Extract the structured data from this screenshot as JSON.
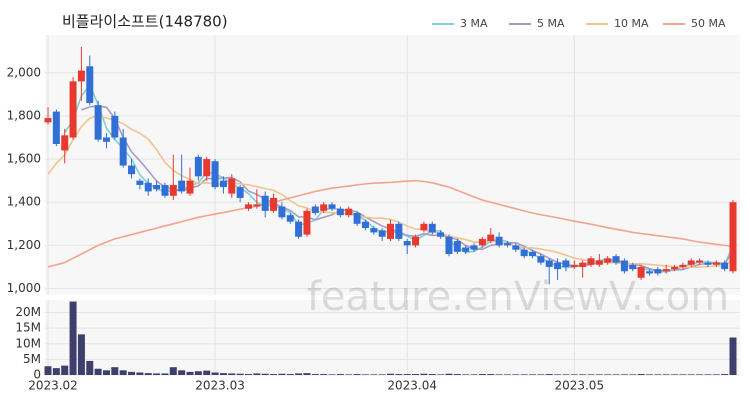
{
  "chart_data": {
    "type": "candlestick",
    "title": "비플라이소프트(148780)",
    "watermark": "feature.enViewV.com",
    "legend": "top-right",
    "up_color": "#e8392f",
    "down_color": "#2f6fd6",
    "categories": [
      "2023.02",
      null,
      null,
      null,
      null,
      null,
      null,
      null,
      null,
      null,
      null,
      null,
      null,
      null,
      null,
      null,
      null,
      null,
      null,
      null,
      "2023.03",
      null,
      null,
      null,
      null,
      null,
      null,
      null,
      null,
      null,
      null,
      null,
      null,
      null,
      null,
      null,
      null,
      null,
      null,
      null,
      null,
      null,
      null,
      "2023.04",
      null,
      null,
      null,
      null,
      null,
      null,
      null,
      null,
      null,
      null,
      null,
      null,
      null,
      null,
      null,
      null,
      null,
      null,
      null,
      "2023.05",
      null,
      null,
      null,
      null,
      null,
      null,
      null,
      null,
      null,
      null,
      null,
      null,
      null,
      null,
      null,
      null,
      null,
      null,
      null
    ],
    "open": [
      1770,
      1820,
      1640,
      1700,
      1960,
      2030,
      1850,
      1700,
      1800,
      1700,
      1570,
      1500,
      1490,
      1480,
      1480,
      1430,
      1500,
      1440,
      1610,
      1520,
      1590,
      1500,
      1440,
      1470,
      1370,
      1380,
      1430,
      1360,
      1380,
      1340,
      1310,
      1250,
      1380,
      1360,
      1390,
      1370,
      1340,
      1350,
      1310,
      1280,
      1270,
      1230,
      1300,
      1220,
      1200,
      1270,
      1300,
      1260,
      1240,
      1220,
      1190,
      1200,
      1200,
      1220,
      1240,
      1210,
      1200,
      1180,
      1170,
      1150,
      1130,
      1120,
      1130,
      1100,
      1100,
      1110,
      1110,
      1120,
      1150,
      1130,
      1110,
      1050,
      1080,
      1090,
      1080,
      1090,
      1100,
      1110,
      1120,
      1120,
      1110,
      1120,
      1080
    ],
    "high": [
      1840,
      1830,
      1740,
      1980,
      2120,
      2080,
      1870,
      1720,
      1820,
      1740,
      1600,
      1510,
      1510,
      1500,
      1490,
      1620,
      1620,
      1560,
      1620,
      1610,
      1600,
      1520,
      1530,
      1480,
      1400,
      1460,
      1450,
      1440,
      1400,
      1350,
      1320,
      1370,
      1390,
      1400,
      1400,
      1380,
      1380,
      1360,
      1320,
      1290,
      1280,
      1320,
      1310,
      1230,
      1250,
      1310,
      1310,
      1270,
      1250,
      1230,
      1200,
      1210,
      1240,
      1280,
      1260,
      1220,
      1210,
      1190,
      1180,
      1160,
      1140,
      1140,
      1140,
      1130,
      1130,
      1150,
      1160,
      1150,
      1160,
      1140,
      1120,
      1110,
      1090,
      1100,
      1110,
      1110,
      1120,
      1140,
      1140,
      1130,
      1130,
      1130,
      1410
    ],
    "low": [
      1760,
      1660,
      1580,
      1690,
      1870,
      1850,
      1680,
      1650,
      1690,
      1560,
      1510,
      1460,
      1430,
      1450,
      1420,
      1410,
      1440,
      1430,
      1500,
      1500,
      1460,
      1440,
      1420,
      1400,
      1360,
      1370,
      1330,
      1350,
      1320,
      1300,
      1230,
      1240,
      1340,
      1350,
      1360,
      1330,
      1330,
      1290,
      1270,
      1250,
      1220,
      1220,
      1220,
      1160,
      1190,
      1260,
      1250,
      1230,
      1150,
      1160,
      1160,
      1170,
      1190,
      1210,
      1190,
      1190,
      1170,
      1140,
      1140,
      1110,
      1020,
      1040,
      1080,
      1090,
      1050,
      1100,
      1100,
      1110,
      1110,
      1070,
      1080,
      1040,
      1060,
      1060,
      1070,
      1080,
      1090,
      1100,
      1110,
      1100,
      1100,
      1080,
      1070
    ],
    "close": [
      1790,
      1670,
      1710,
      1960,
      2010,
      1860,
      1690,
      1680,
      1700,
      1570,
      1530,
      1480,
      1450,
      1460,
      1430,
      1480,
      1450,
      1500,
      1520,
      1600,
      1470,
      1470,
      1510,
      1420,
      1390,
      1390,
      1360,
      1420,
      1330,
      1310,
      1240,
      1360,
      1350,
      1390,
      1370,
      1340,
      1370,
      1300,
      1280,
      1260,
      1240,
      1300,
      1230,
      1200,
      1240,
      1300,
      1260,
      1240,
      1160,
      1170,
      1170,
      1180,
      1230,
      1250,
      1200,
      1200,
      1180,
      1150,
      1150,
      1120,
      1100,
      1090,
      1100,
      1110,
      1120,
      1140,
      1130,
      1140,
      1120,
      1080,
      1090,
      1100,
      1070,
      1070,
      1090,
      1100,
      1110,
      1130,
      1130,
      1110,
      1120,
      1090,
      1400
    ],
    "series": [
      {
        "name": "3 MA",
        "color": "#7fcfd8",
        "values": [
          null,
          null,
          1723,
          1780,
          1893,
          1943,
          1853,
          1743,
          1690,
          1650,
          1600,
          1527,
          1487,
          1463,
          1447,
          1457,
          1453,
          1477,
          1490,
          1540,
          1530,
          1513,
          1483,
          1467,
          1440,
          1400,
          1380,
          1390,
          1370,
          1353,
          1293,
          1303,
          1317,
          1367,
          1370,
          1367,
          1360,
          1337,
          1317,
          1280,
          1260,
          1267,
          1257,
          1243,
          1223,
          1247,
          1267,
          1267,
          1220,
          1190,
          1167,
          1173,
          1193,
          1220,
          1227,
          1217,
          1193,
          1177,
          1160,
          1140,
          1123,
          1103,
          1097,
          1100,
          1110,
          1123,
          1130,
          1137,
          1130,
          1113,
          1097,
          1090,
          1087,
          1080,
          1077,
          1087,
          1100,
          1113,
          1123,
          1123,
          1120,
          1107,
          1203
        ]
      },
      {
        "name": "5 MA",
        "color": "#a99bc4",
        "values": [
          null,
          null,
          null,
          null,
          1828,
          1842,
          1846,
          1840,
          1788,
          1700,
          1634,
          1592,
          1546,
          1498,
          1470,
          1460,
          1454,
          1464,
          1476,
          1510,
          1508,
          1512,
          1514,
          1494,
          1452,
          1436,
          1414,
          1396,
          1378,
          1362,
          1332,
          1332,
          1318,
          1330,
          1342,
          1362,
          1364,
          1354,
          1332,
          1310,
          1290,
          1276,
          1262,
          1246,
          1242,
          1254,
          1246,
          1248,
          1240,
          1226,
          1200,
          1184,
          1182,
          1200,
          1206,
          1212,
          1212,
          1196,
          1176,
          1160,
          1140,
          1122,
          1112,
          1104,
          1104,
          1112,
          1120,
          1128,
          1130,
          1122,
          1112,
          1106,
          1092,
          1082,
          1084,
          1086,
          1088,
          1100,
          1112,
          1116,
          1120,
          1116,
          1170
        ]
      },
      {
        "name": "10 MA",
        "color": "#f2c48d",
        "values": [
          1530,
          1580,
          1620,
          1690,
          1750,
          1790,
          1800,
          1790,
          1780,
          1764,
          1738,
          1719,
          1693,
          1643,
          1585,
          1547,
          1523,
          1505,
          1487,
          1490,
          1484,
          1483,
          1489,
          1485,
          1481,
          1472,
          1463,
          1455,
          1436,
          1407,
          1384,
          1373,
          1357,
          1354,
          1352,
          1347,
          1348,
          1336,
          1331,
          1326,
          1326,
          1320,
          1308,
          1289,
          1276,
          1272,
          1261,
          1255,
          1243,
          1234,
          1227,
          1215,
          1215,
          1220,
          1216,
          1206,
          1198,
          1189,
          1188,
          1183,
          1176,
          1167,
          1154,
          1141,
          1133,
          1127,
          1122,
          1121,
          1119,
          1115,
          1114,
          1115,
          1112,
          1108,
          1105,
          1101,
          1099,
          1098,
          1099,
          1102,
          1105,
          1104,
          1137
        ]
      },
      {
        "name": "50 MA",
        "color": "#f4a38c",
        "values": [
          1100,
          1110,
          1120,
          1140,
          1160,
          1180,
          1200,
          1215,
          1230,
          1240,
          1250,
          1260,
          1270,
          1280,
          1290,
          1300,
          1310,
          1320,
          1330,
          1338,
          1345,
          1352,
          1360,
          1368,
          1375,
          1382,
          1390,
          1400,
          1410,
          1420,
          1430,
          1440,
          1450,
          1458,
          1465,
          1470,
          1475,
          1480,
          1485,
          1488,
          1490,
          1492,
          1495,
          1498,
          1500,
          1496,
          1490,
          1480,
          1470,
          1455,
          1440,
          1425,
          1410,
          1400,
          1390,
          1380,
          1370,
          1360,
          1350,
          1342,
          1335,
          1328,
          1320,
          1312,
          1305,
          1298,
          1290,
          1282,
          1275,
          1268,
          1260,
          1255,
          1250,
          1245,
          1240,
          1235,
          1230,
          1222,
          1215,
          1210,
          1205,
          1200,
          1195
        ]
      }
    ],
    "ylim": [
      970,
      2175
    ],
    "yticks": [
      {
        "value": 1000,
        "label": "1,000"
      },
      {
        "value": 1200,
        "label": "1,200"
      },
      {
        "value": 1400,
        "label": "1,400"
      },
      {
        "value": 1600,
        "label": "1,600"
      },
      {
        "value": 1800,
        "label": "1,800"
      },
      {
        "value": 2000,
        "label": "2,000"
      }
    ],
    "volume": {
      "color": "#3f3f6e",
      "values": [
        2800000,
        2200000,
        3000000,
        23500000,
        13000000,
        4500000,
        2000000,
        1500000,
        2500000,
        1500000,
        1000000,
        800000,
        600000,
        500000,
        500000,
        2500000,
        1500000,
        1000000,
        1200000,
        1400000,
        800000,
        600000,
        500000,
        400000,
        300000,
        500000,
        400000,
        300000,
        400000,
        300000,
        500000,
        600000,
        300000,
        300000,
        200000,
        300000,
        200000,
        300000,
        200000,
        200000,
        200000,
        400000,
        300000,
        300000,
        300000,
        400000,
        300000,
        200000,
        400000,
        300000,
        200000,
        200000,
        300000,
        300000,
        200000,
        200000,
        200000,
        200000,
        200000,
        200000,
        300000,
        200000,
        200000,
        200000,
        200000,
        200000,
        200000,
        200000,
        200000,
        200000,
        200000,
        300000,
        200000,
        200000,
        200000,
        200000,
        200000,
        200000,
        200000,
        200000,
        200000,
        300000,
        12000000
      ],
      "ylim": [
        0,
        24000000
      ],
      "yticks": [
        0,
        {
          "value": 5000000,
          "label": "5M"
        },
        {
          "value": 10000000,
          "label": "10M"
        },
        {
          "value": 15000000,
          "label": "15M"
        },
        {
          "value": 20000000,
          "label": "20M"
        }
      ]
    }
  }
}
